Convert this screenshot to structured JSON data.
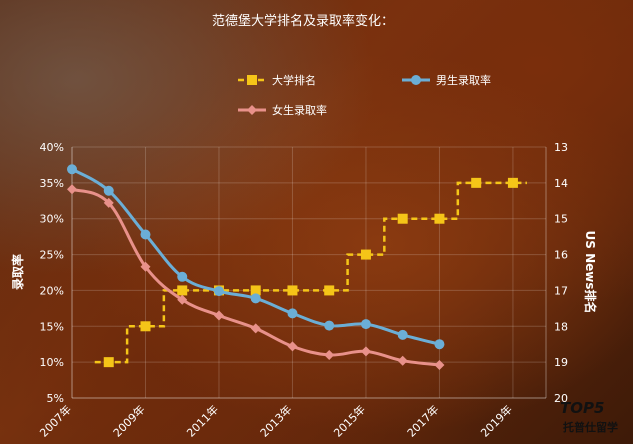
{
  "chart_data": {
    "type": "line",
    "title": "范德堡大学排名及录取率变化：",
    "ylabel": "录取率",
    "y2label": "US News排名",
    "x_ticks": [
      "2007年",
      "2009年",
      "2011年",
      "2013年",
      "2015年",
      "2017年",
      "2019年"
    ],
    "ylim": [
      5,
      40
    ],
    "y_ticks": [
      "5%",
      "10%",
      "15%",
      "20%",
      "25%",
      "30%",
      "35%",
      "40%"
    ],
    "y2lim": [
      13,
      20
    ],
    "y2_ticks": [
      "13",
      "14",
      "15",
      "16",
      "17",
      "18",
      "19",
      "20"
    ],
    "grid": true,
    "legend_position": "top",
    "series": [
      {
        "name": "大学排名",
        "axis": "right",
        "style": "dashed-step",
        "color": "#f5c518",
        "marker": "square",
        "x": [
          2008,
          2009,
          2010,
          2011,
          2012,
          2013,
          2014,
          2015,
          2016,
          2017,
          2018,
          2019
        ],
        "values": [
          19,
          18,
          17,
          17,
          17,
          17,
          17,
          16,
          15,
          15,
          14,
          14
        ]
      },
      {
        "name": "男生录取率",
        "axis": "left",
        "style": "smooth",
        "color": "#6baed6",
        "marker": "circle",
        "x": [
          2007,
          2008,
          2009,
          2010,
          2011,
          2012,
          2013,
          2014,
          2015,
          2016,
          2017
        ],
        "values": [
          36.9,
          33.9,
          27.8,
          21.9,
          19.9,
          18.9,
          16.8,
          15.1,
          15.3,
          13.8,
          12.5
        ]
      },
      {
        "name": "女生录取率",
        "axis": "left",
        "style": "smooth",
        "color": "#e8918a",
        "marker": "diamond",
        "x": [
          2007,
          2008,
          2009,
          2010,
          2011,
          2012,
          2013,
          2014,
          2015,
          2016,
          2017
        ],
        "values": [
          34.1,
          32.2,
          23.3,
          18.7,
          16.5,
          14.7,
          12.2,
          11.0,
          11.5,
          10.2,
          9.6
        ]
      }
    ]
  },
  "watermark": {
    "main": "TOP5",
    "sub": "托普仕留学"
  }
}
